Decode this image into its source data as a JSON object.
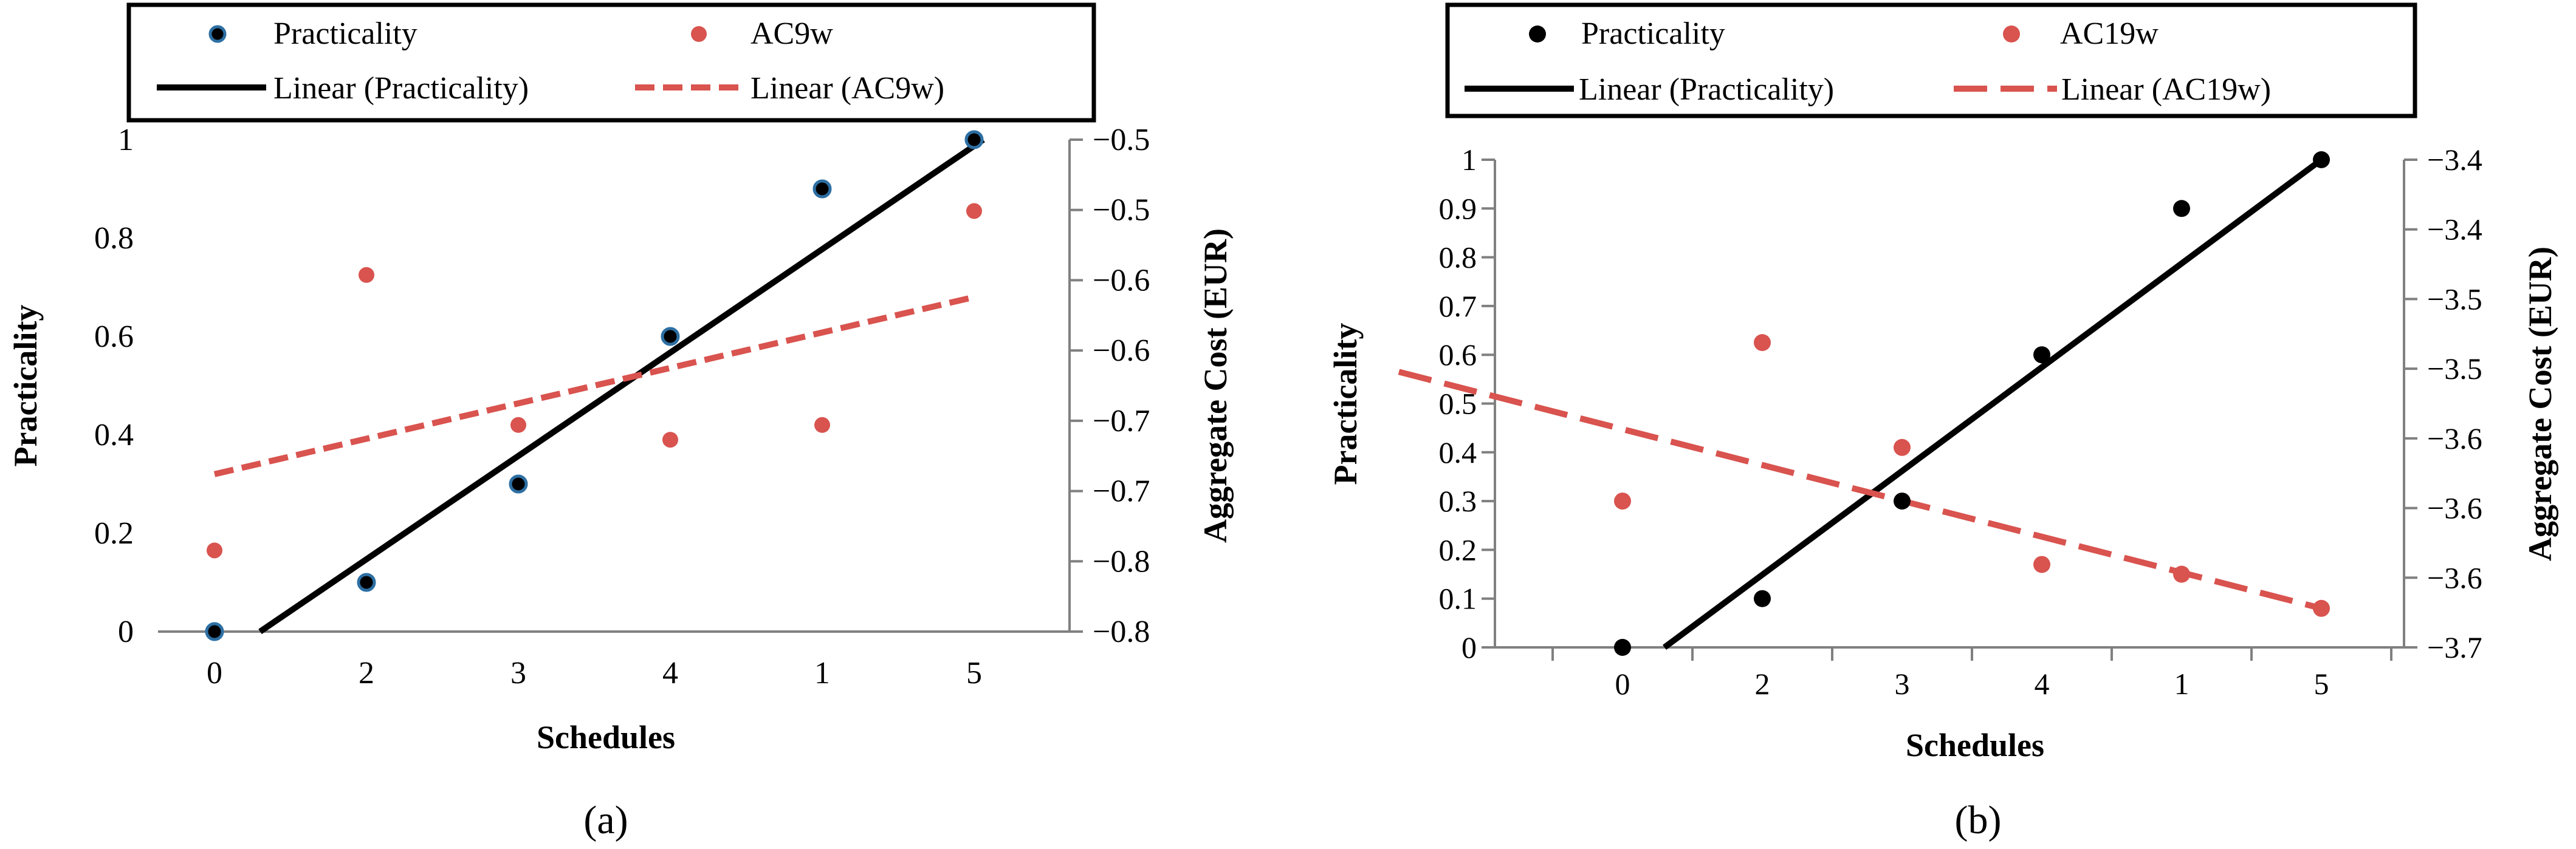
{
  "colors": {
    "practicality": "#000000",
    "ac": "#d9534f",
    "axis_right": "#808080",
    "marker_edge_a": "#2d6fa3"
  },
  "chart_data": [
    {
      "type": "scatter",
      "panel_label": "(a)",
      "title": "",
      "xlabel": "Schedules",
      "ylabel_left": "Practicality",
      "ylabel_right": "Aggregate Cost (EUR)",
      "categories": [
        "0",
        "2",
        "3",
        "4",
        "1",
        "5"
      ],
      "ylim_left": [
        0,
        1
      ],
      "yticks_left": [
        "0",
        "0.2",
        "0.4",
        "0.6",
        "0.8",
        "1"
      ],
      "ylim_right": [
        -0.8,
        -0.5
      ],
      "yticks_right": [
        "−0.8",
        "−0.8",
        "−0.7",
        "−0.7",
        "−0.6",
        "−0.6",
        "−0.5",
        "−0.5"
      ],
      "legend": {
        "practicality": "Practicality",
        "ac": "AC9w",
        "linear_practicality": "Linear (Practicality)",
        "linear_ac": "Linear (AC9w)"
      },
      "series": [
        {
          "name": "Practicality",
          "axis": "left",
          "values": [
            0,
            0.1,
            0.3,
            0.6,
            0.9,
            1.0
          ]
        },
        {
          "name": "AC9w",
          "axis": "left",
          "values": [
            0.165,
            0.725,
            0.42,
            0.39,
            0.42,
            0.855
          ]
        }
      ],
      "trendlines": [
        {
          "name": "Linear (Practicality)",
          "style": "solid",
          "x_start": 0.3,
          "y_start": 0,
          "x_end": 5.06,
          "y_end": 1.0
        },
        {
          "name": "Linear (AC9w)",
          "style": "dashed",
          "x_start": 0,
          "y_start": 0.32,
          "x_end": 5,
          "y_end": 0.68
        }
      ]
    },
    {
      "type": "scatter",
      "panel_label": "(b)",
      "title": "",
      "xlabel": "Schedules",
      "ylabel_left": "Practicality",
      "ylabel_right": "Aggregate Cost (EUR)",
      "categories": [
        "0",
        "2",
        "3",
        "4",
        "1",
        "5"
      ],
      "ylim_left": [
        0,
        1
      ],
      "yticks_left": [
        "0",
        "0.1",
        "0.2",
        "0.3",
        "0.4",
        "0.5",
        "0.6",
        "0.7",
        "0.8",
        "0.9",
        "1"
      ],
      "ylim_right": [
        -3.7,
        -3.4
      ],
      "yticks_right": [
        "−3.7",
        "−3.6",
        "−3.6",
        "−3.6",
        "−3.5",
        "−3.5",
        "−3.4",
        "−3.4"
      ],
      "legend": {
        "practicality": "Practicality",
        "ac": "AC19w",
        "linear_practicality": "Linear (Practicality)",
        "linear_ac": "Linear (AC19w)"
      },
      "series": [
        {
          "name": "Practicality",
          "axis": "left",
          "values": [
            0,
            0.1,
            0.3,
            0.6,
            0.9,
            1.0
          ]
        },
        {
          "name": "AC19w",
          "axis": "left",
          "values": [
            0.3,
            0.625,
            0.41,
            0.17,
            0.15,
            0.08
          ]
        }
      ],
      "trendlines": [
        {
          "name": "Linear (Practicality)",
          "style": "solid",
          "x_start": 0.3,
          "y_start": 0,
          "x_end": 5,
          "y_end": 1.0
        },
        {
          "name": "Linear (AC19w)",
          "style": "dashed",
          "x_start": -1.6,
          "y_start": 0.565,
          "x_end": 5,
          "y_end": 0.08
        }
      ]
    }
  ]
}
